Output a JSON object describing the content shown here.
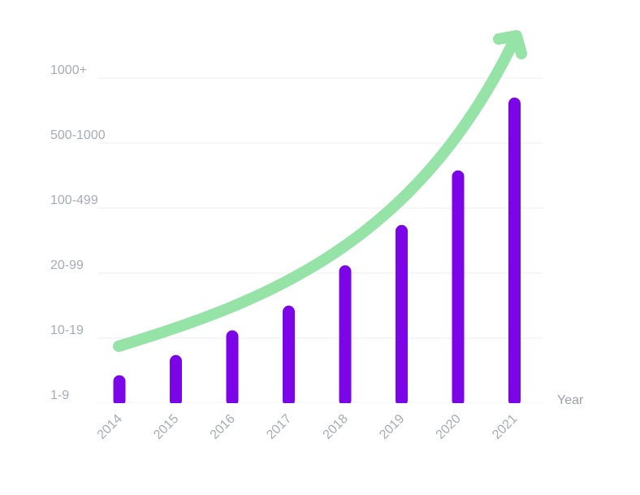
{
  "chart_data": {
    "type": "bar",
    "xlabel": "Year",
    "categories": [
      "2014",
      "2015",
      "2016",
      "2017",
      "2018",
      "2019",
      "2020",
      "2021"
    ],
    "y_tick_labels": [
      "1-9",
      "10-19",
      "20-99",
      "100-499",
      "500-1000",
      "1000+"
    ],
    "ylim": [
      0,
      5
    ],
    "values": [
      0.43,
      0.74,
      1.12,
      1.5,
      2.12,
      2.74,
      3.58,
      4.7
    ],
    "grid": true,
    "trend_arrow": true,
    "colors": {
      "bar": "#7c05e8",
      "arrow": "#96e3a8",
      "grid": "#eceef2",
      "tick_text": "#a6abb8"
    }
  }
}
